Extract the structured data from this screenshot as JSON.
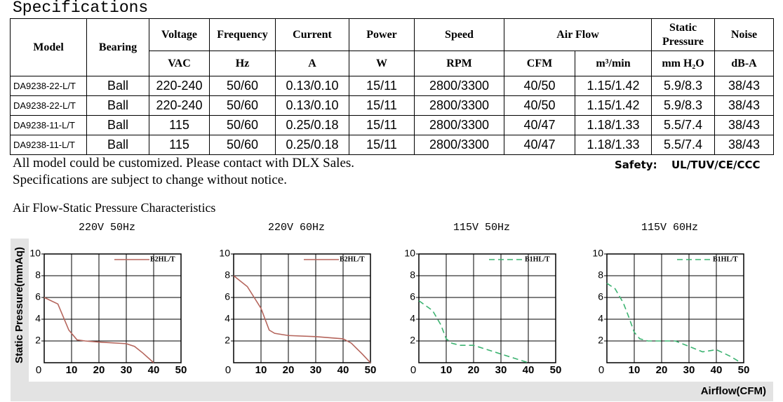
{
  "header": {
    "title": "Specifications"
  },
  "table": {
    "header_top": [
      "Model",
      "Bearing",
      "Voltage",
      "Frequency",
      "Current",
      "Power",
      "Speed",
      "Air Flow",
      "Static Pressure",
      "Noise"
    ],
    "units": [
      "VAC",
      "Hz",
      "A",
      "W",
      "RPM",
      "CFM",
      "m³/min",
      "mm H₂O",
      "dB-A"
    ],
    "rows": [
      [
        "DA9238-22-L/T",
        "Ball",
        "220-240",
        "50/60",
        "0.13/0.10",
        "15/11",
        "2800/3300",
        "40/50",
        "1.15/1.42",
        "5.9/8.3",
        "38/43"
      ],
      [
        "DA9238-22-L/T",
        "Ball",
        "220-240",
        "50/60",
        "0.13/0.10",
        "15/11",
        "2800/3300",
        "40/50",
        "1.15/1.42",
        "5.9/8.3",
        "38/43"
      ],
      [
        "DA9238-11-L/T",
        "Ball",
        "115",
        "50/60",
        "0.25/0.18",
        "15/11",
        "2800/3300",
        "40/47",
        "1.18/1.33",
        "5.5/7.4",
        "38/43"
      ],
      [
        "DA9238-11-L/T",
        "Ball",
        "115",
        "50/60",
        "0.25/0.18",
        "15/11",
        "2800/3300",
        "40/47",
        "1.18/1.33",
        "5.5/7.4",
        "38/43"
      ]
    ]
  },
  "notes": [
    "All model could be customized. Please contact with DLX Sales.",
    "Specifications are subject to change without notice."
  ],
  "safety": {
    "label": "Safety:",
    "value": "UL/TUV/CE/CCC"
  },
  "charts_section": {
    "title": "Air Flow-Static Pressure Characteristics",
    "y_label": "Static Pressure(mmAq)",
    "x_label": "Airflow(CFM)"
  },
  "chart_data": [
    {
      "type": "line",
      "title": "220V 50Hz",
      "x": [
        0,
        5,
        9,
        12,
        15,
        20,
        30,
        33,
        36,
        40
      ],
      "series": [
        {
          "name": "B2HL/T",
          "color": "#b5655c",
          "line_style": "solid",
          "values": [
            6,
            5.4,
            3.0,
            2.1,
            2.0,
            1.9,
            1.75,
            1.5,
            0.9,
            0
          ]
        }
      ],
      "xlim": [
        0,
        50
      ],
      "ylim": [
        0,
        10
      ],
      "xticks": [
        0,
        10,
        20,
        30,
        40,
        50
      ],
      "yticks": [
        2,
        4,
        6,
        8,
        10
      ],
      "grid": true,
      "legend": "upper right"
    },
    {
      "type": "line",
      "title": "220V 60Hz",
      "x": [
        0,
        5,
        10,
        13,
        15,
        20,
        30,
        40,
        43,
        47,
        50
      ],
      "series": [
        {
          "name": "B2HL/T",
          "color": "#b5655c",
          "line_style": "solid",
          "values": [
            8,
            7,
            5,
            3,
            2.7,
            2.5,
            2.4,
            2.2,
            1.8,
            0.8,
            0
          ]
        }
      ],
      "xlim": [
        0,
        50
      ],
      "ylim": [
        0,
        10
      ],
      "xticks": [
        0,
        10,
        20,
        30,
        40,
        50
      ],
      "yticks": [
        2,
        4,
        6,
        8,
        10
      ],
      "grid": true,
      "legend": "upper right"
    },
    {
      "type": "line",
      "title": "115V 50Hz",
      "x": [
        0,
        5,
        8,
        10,
        12,
        15,
        20,
        25,
        30,
        35,
        40
      ],
      "series": [
        {
          "name": "B1HL/T",
          "color": "#3cb371",
          "line_style": "dashed",
          "values": [
            5.7,
            4.8,
            3.5,
            2.2,
            1.8,
            1.6,
            1.6,
            1.2,
            0.8,
            0.4,
            0
          ]
        }
      ],
      "xlim": [
        0,
        50
      ],
      "ylim": [
        0,
        10
      ],
      "xticks": [
        0,
        10,
        20,
        30,
        40,
        50
      ],
      "yticks": [
        2,
        4,
        6,
        8,
        10
      ],
      "grid": true,
      "legend": "upper right"
    },
    {
      "type": "line",
      "title": "115V 60Hz",
      "x": [
        0,
        3,
        6,
        8,
        10,
        12,
        15,
        20,
        25,
        30,
        35,
        40,
        45,
        49
      ],
      "series": [
        {
          "name": "B1HL/T",
          "color": "#3cb371",
          "line_style": "dashed",
          "values": [
            7.3,
            6.8,
            5.5,
            4.2,
            2.8,
            2.2,
            2.0,
            2.0,
            2.0,
            1.5,
            1.0,
            1.2,
            0.6,
            0
          ]
        }
      ],
      "xlim": [
        0,
        50
      ],
      "ylim": [
        0,
        10
      ],
      "xticks": [
        0,
        10,
        20,
        30,
        40,
        50
      ],
      "yticks": [
        2,
        4,
        6,
        8,
        10
      ],
      "grid": true,
      "legend": "upper right"
    }
  ]
}
